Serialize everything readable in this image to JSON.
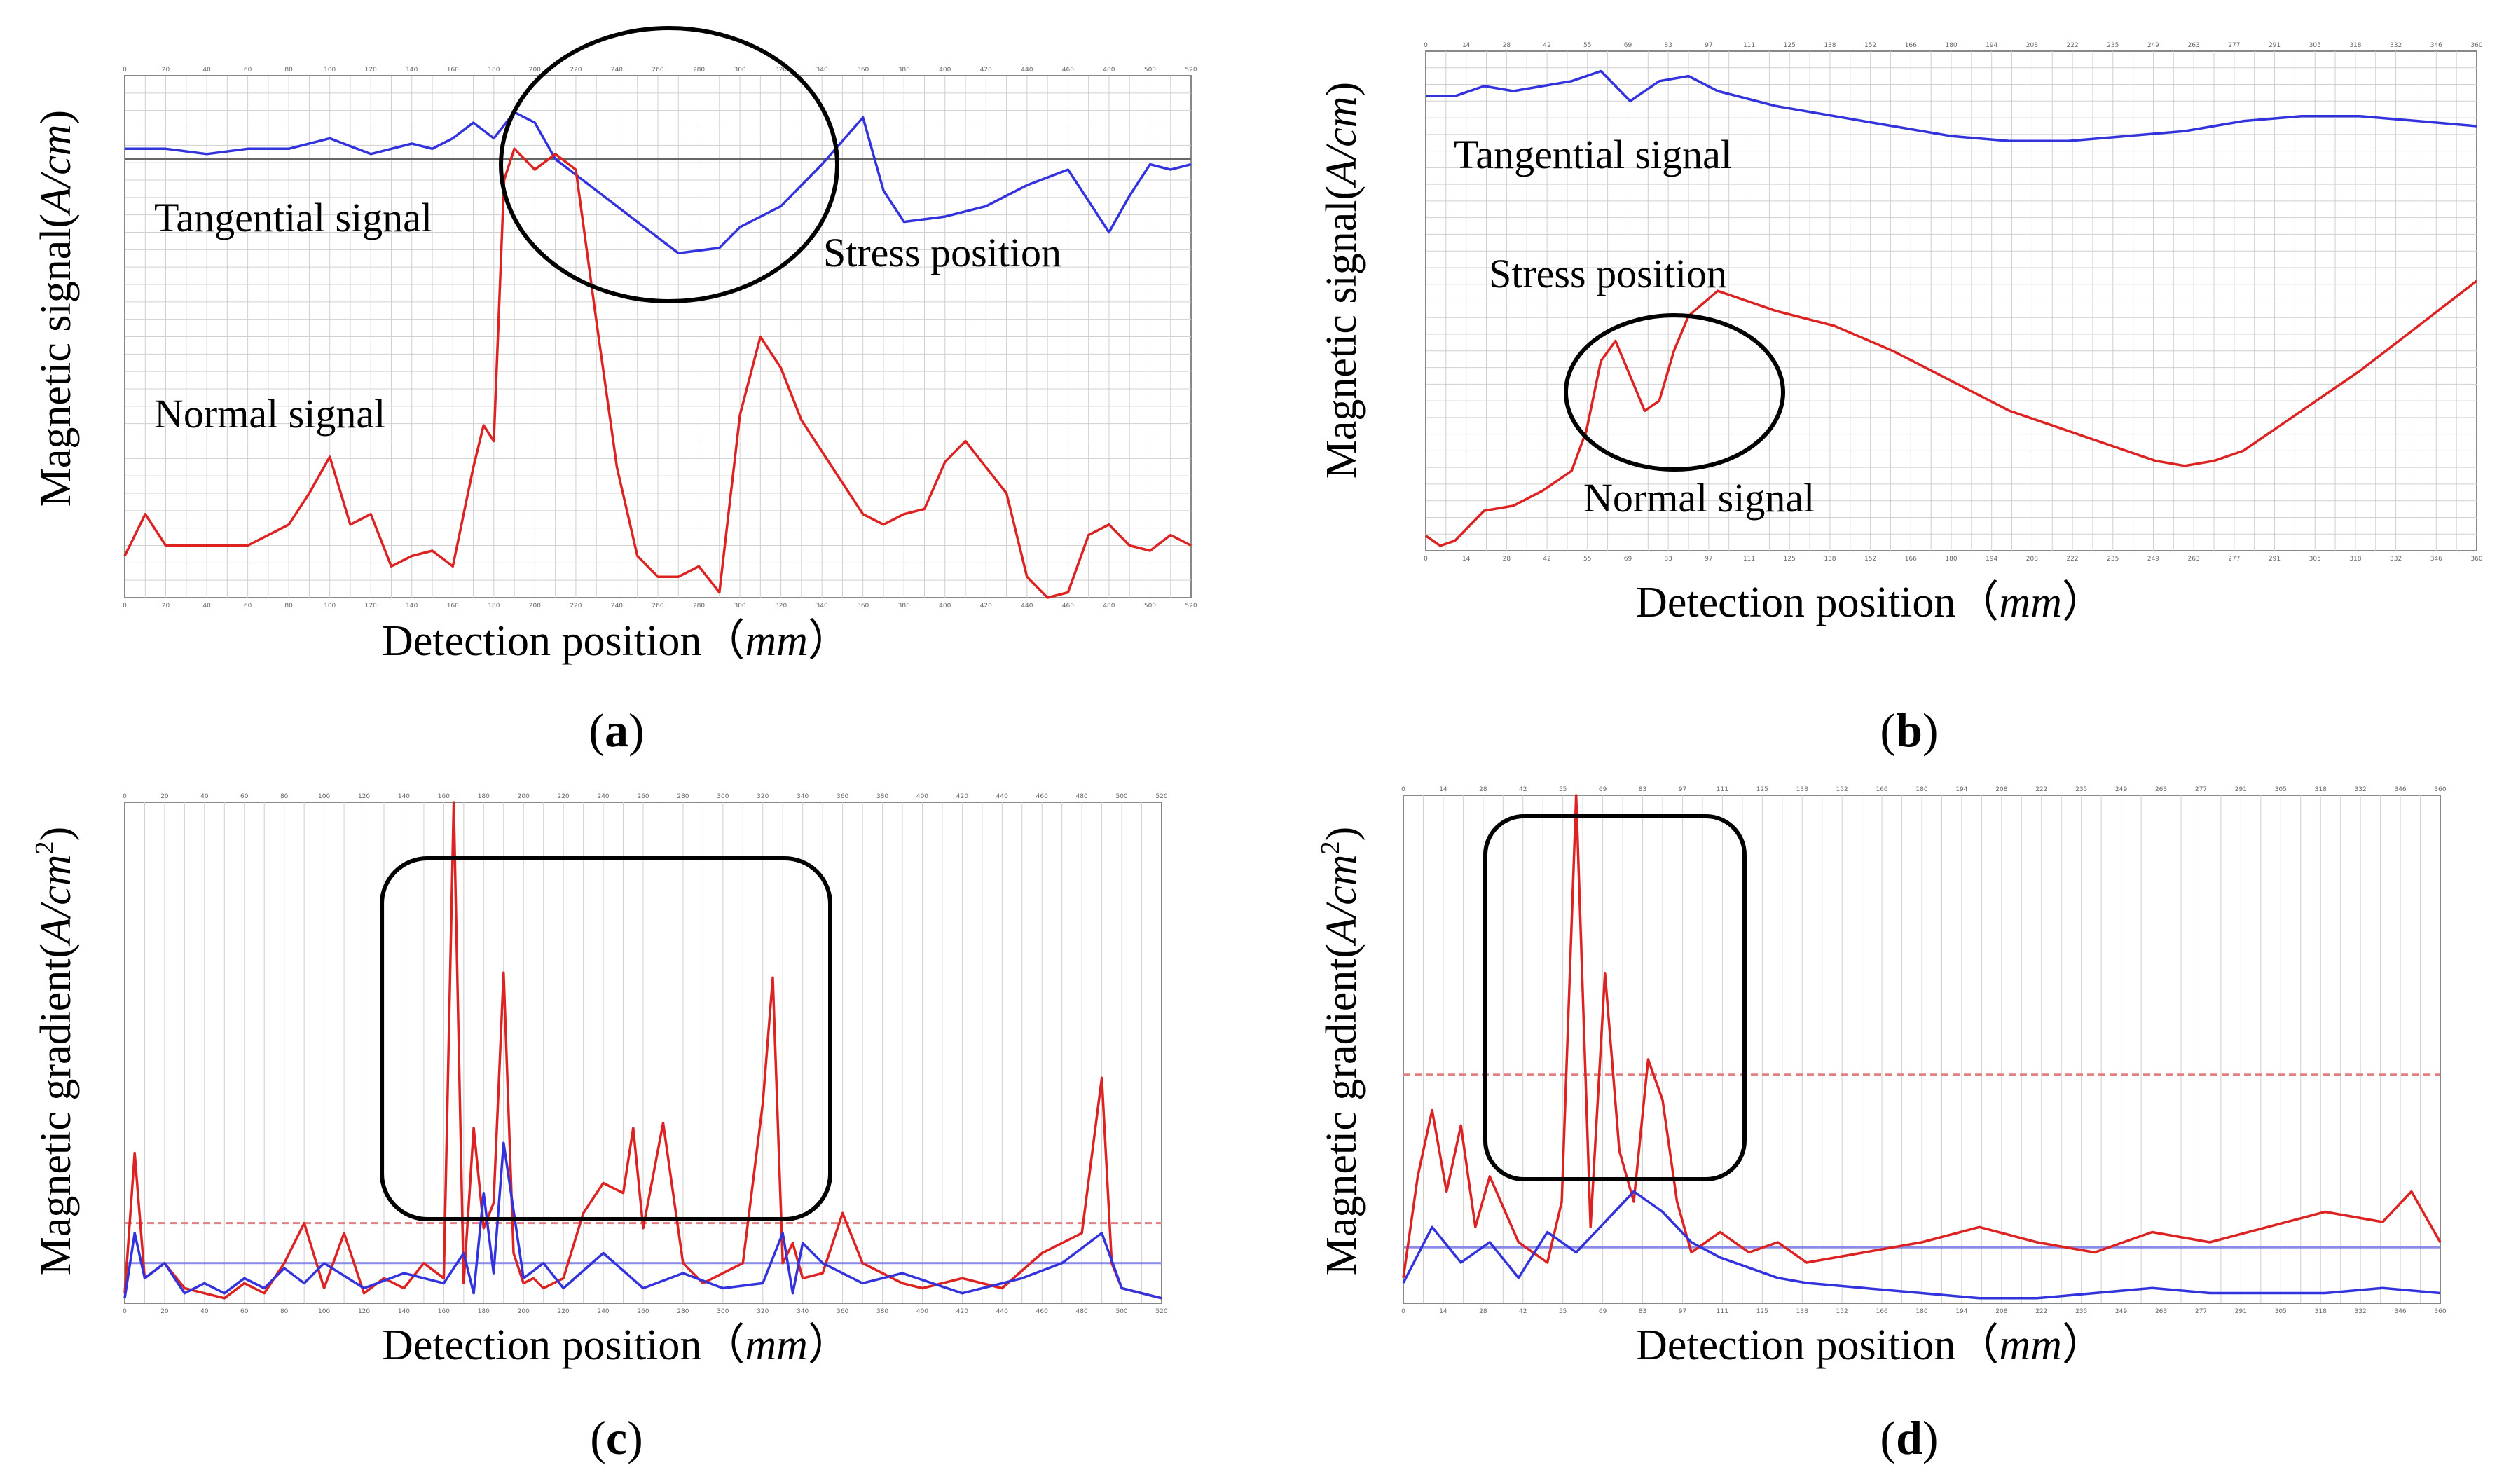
{
  "chart_data": [
    {
      "panel": "(a)",
      "type": "line",
      "ylabel": "Magnetic signal(A/cm)",
      "xlabel": "Detection position（mm）",
      "xlim": [
        0,
        520
      ],
      "ylim": [
        0,
        100
      ],
      "annotations": [
        "Tangential signal",
        "Normal signal",
        "Stress position"
      ],
      "series": [
        {
          "name": "Tangential signal",
          "color": "#3333dd",
          "x": [
            0,
            20,
            40,
            60,
            80,
            100,
            120,
            140,
            150,
            160,
            170,
            180,
            190,
            200,
            210,
            230,
            250,
            270,
            290,
            300,
            320,
            340,
            360,
            370,
            380,
            400,
            420,
            440,
            460,
            480,
            490,
            500,
            510,
            520
          ],
          "y": [
            86,
            86,
            85,
            86,
            86,
            88,
            85,
            87,
            86,
            88,
            91,
            88,
            93,
            91,
            84,
            78,
            72,
            66,
            67,
            71,
            75,
            83,
            92,
            78,
            72,
            73,
            75,
            79,
            82,
            70,
            77,
            83,
            82,
            83
          ]
        },
        {
          "name": "Normal signal",
          "color": "#dd2222",
          "x": [
            0,
            10,
            20,
            40,
            60,
            80,
            90,
            100,
            110,
            120,
            130,
            140,
            150,
            160,
            170,
            175,
            180,
            185,
            190,
            200,
            210,
            220,
            230,
            240,
            250,
            260,
            270,
            280,
            290,
            300,
            310,
            320,
            330,
            340,
            350,
            360,
            370,
            380,
            390,
            400,
            410,
            420,
            430,
            440,
            450,
            460,
            470,
            480,
            490,
            500,
            510,
            520
          ],
          "y": [
            8,
            16,
            10,
            10,
            10,
            14,
            20,
            27,
            14,
            16,
            6,
            8,
            9,
            6,
            25,
            33,
            30,
            80,
            86,
            82,
            85,
            82,
            53,
            25,
            8,
            4,
            4,
            6,
            1,
            35,
            50,
            44,
            34,
            28,
            22,
            16,
            14,
            16,
            17,
            26,
            30,
            25,
            20,
            4,
            0,
            1,
            12,
            14,
            10,
            9,
            12,
            10
          ]
        }
      ]
    },
    {
      "panel": "(b)",
      "type": "line",
      "ylabel": "Magnetic signal(A/cm)",
      "xlabel": "Detection position（mm）",
      "xlim": [
        0,
        360
      ],
      "ylim": [
        0,
        100
      ],
      "annotations": [
        "Tangential signal",
        "Stress position",
        "Normal signal"
      ],
      "series": [
        {
          "name": "Tangential signal",
          "color": "#3333dd",
          "x": [
            0,
            10,
            20,
            30,
            40,
            50,
            60,
            70,
            80,
            90,
            100,
            120,
            140,
            160,
            180,
            200,
            220,
            240,
            260,
            280,
            300,
            320,
            340,
            360
          ],
          "y": [
            91,
            91,
            93,
            92,
            93,
            94,
            96,
            90,
            94,
            95,
            92,
            89,
            87,
            85,
            83,
            82,
            82,
            83,
            84,
            86,
            87,
            87,
            86,
            85
          ]
        },
        {
          "name": "Normal signal",
          "color": "#dd2222",
          "x": [
            0,
            5,
            10,
            20,
            30,
            40,
            50,
            55,
            60,
            65,
            70,
            75,
            80,
            85,
            90,
            100,
            110,
            120,
            140,
            160,
            180,
            200,
            220,
            240,
            250,
            260,
            270,
            280,
            290,
            300,
            320,
            340,
            360
          ],
          "y": [
            3,
            1,
            2,
            8,
            9,
            12,
            16,
            24,
            38,
            42,
            35,
            28,
            30,
            40,
            47,
            52,
            50,
            48,
            45,
            40,
            34,
            28,
            24,
            20,
            18,
            17,
            18,
            20,
            24,
            28,
            36,
            45,
            54
          ]
        }
      ]
    },
    {
      "panel": "(c)",
      "type": "line",
      "ylabel": "Magnetic gradient(A/cm²)",
      "xlabel": "Detection position（mm）",
      "xlim": [
        0,
        520
      ],
      "ylim": [
        0,
        100
      ],
      "series": [
        {
          "name": "Red gradient",
          "color": "#dd2222",
          "x": [
            0,
            5,
            10,
            20,
            30,
            40,
            50,
            60,
            70,
            80,
            90,
            100,
            110,
            120,
            130,
            140,
            150,
            160,
            165,
            170,
            175,
            180,
            185,
            190,
            195,
            200,
            205,
            210,
            220,
            230,
            240,
            250,
            255,
            260,
            270,
            280,
            290,
            300,
            310,
            320,
            325,
            330,
            335,
            340,
            350,
            360,
            370,
            380,
            390,
            400,
            420,
            440,
            460,
            480,
            490,
            495,
            500,
            510,
            520
          ],
          "y": [
            2,
            30,
            5,
            8,
            3,
            2,
            1,
            4,
            2,
            8,
            16,
            3,
            14,
            2,
            5,
            3,
            8,
            5,
            100,
            4,
            35,
            15,
            20,
            66,
            10,
            4,
            5,
            3,
            5,
            18,
            24,
            22,
            35,
            15,
            36,
            8,
            4,
            6,
            8,
            40,
            65,
            8,
            12,
            5,
            6,
            18,
            8,
            6,
            4,
            3,
            5,
            3,
            10,
            14,
            45,
            8,
            3,
            2,
            1
          ]
        },
        {
          "name": "Blue gradient",
          "color": "#3333dd",
          "x": [
            0,
            5,
            10,
            20,
            30,
            40,
            50,
            60,
            70,
            80,
            90,
            100,
            120,
            140,
            160,
            170,
            175,
            180,
            185,
            190,
            200,
            210,
            220,
            240,
            260,
            280,
            300,
            320,
            330,
            335,
            340,
            350,
            370,
            390,
            420,
            450,
            470,
            490,
            500,
            520
          ],
          "y": [
            1,
            14,
            5,
            8,
            2,
            4,
            2,
            5,
            3,
            7,
            4,
            8,
            3,
            6,
            4,
            10,
            2,
            22,
            6,
            32,
            5,
            8,
            3,
            10,
            3,
            6,
            3,
            4,
            14,
            2,
            12,
            8,
            4,
            6,
            2,
            5,
            8,
            14,
            3,
            1
          ]
        }
      ]
    },
    {
      "panel": "(d)",
      "type": "line",
      "ylabel": "Magnetic gradient(A/cm²)",
      "xlabel": "Detection position（mm）",
      "xlim": [
        0,
        360
      ],
      "ylim": [
        0,
        100
      ],
      "series": [
        {
          "name": "Red gradient",
          "color": "#dd2222",
          "x": [
            0,
            5,
            10,
            15,
            20,
            25,
            30,
            40,
            50,
            55,
            60,
            65,
            70,
            75,
            80,
            85,
            90,
            95,
            100,
            110,
            120,
            130,
            140,
            160,
            180,
            200,
            220,
            240,
            260,
            280,
            300,
            320,
            340,
            350,
            360
          ],
          "y": [
            5,
            25,
            38,
            22,
            35,
            15,
            25,
            12,
            8,
            20,
            100,
            15,
            65,
            30,
            20,
            48,
            40,
            20,
            10,
            14,
            10,
            12,
            8,
            10,
            12,
            15,
            12,
            10,
            14,
            12,
            15,
            18,
            16,
            22,
            12
          ]
        },
        {
          "name": "Blue gradient",
          "color": "#3333dd",
          "x": [
            0,
            10,
            20,
            30,
            40,
            50,
            60,
            70,
            80,
            90,
            100,
            110,
            120,
            130,
            140,
            160,
            180,
            200,
            220,
            240,
            260,
            280,
            300,
            320,
            340,
            360
          ],
          "y": [
            4,
            15,
            8,
            12,
            5,
            14,
            10,
            16,
            22,
            18,
            12,
            9,
            7,
            5,
            4,
            3,
            2,
            1,
            1,
            2,
            3,
            2,
            2,
            2,
            3,
            2
          ]
        }
      ]
    }
  ],
  "labels": {
    "panel_a": "(a)",
    "panel_b": "(b)",
    "panel_c": "(c)",
    "panel_d": "(d)",
    "y_signal_prefix": "Magnetic signal(",
    "y_signal_unit": "A/cm",
    "y_signal_suffix": ")",
    "y_grad_prefix": "Magnetic gradient(",
    "y_grad_unit": "A/cm",
    "y_grad_sup": "2",
    "y_grad_suffix": ")",
    "x_prefix": "Detection position（",
    "x_unit": "mm",
    "x_suffix": "）",
    "tangential": "Tangential signal",
    "normal": "Normal signal",
    "stress": "Stress position"
  },
  "colors": {
    "red": "#dd2222",
    "blue": "#3333dd",
    "grid": "#d0d0d0"
  }
}
